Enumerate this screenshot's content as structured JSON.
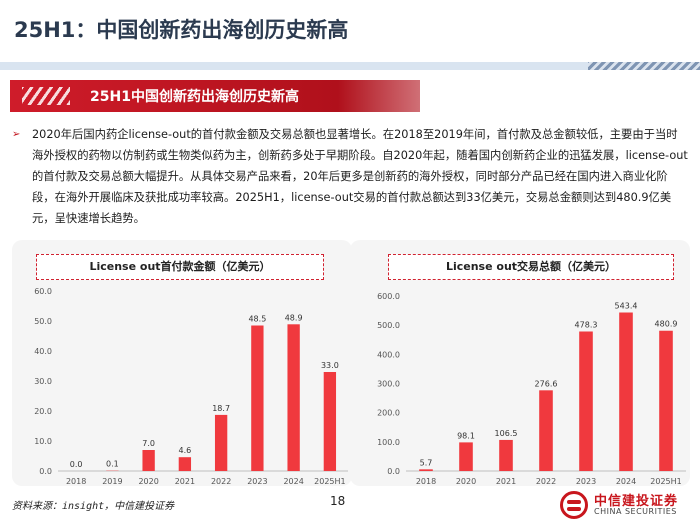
{
  "header": {
    "title": "25H1：中国创新药出海创历史新高"
  },
  "section": {
    "banner": "25H1中国创新药出海创历史新高"
  },
  "body": {
    "arrow": "➢",
    "text": "2020年后国内药企license-out的首付款金额及交易总额也显著增长。在2018至2019年间，首付款及总金额较低，主要由于当时海外授权的药物以仿制药或生物类似药为主，创新药多处于早期阶段。自2020年起，随着国内创新药企业的迅猛发展，license-out的首付款及交易总额大幅提升。从具体交易产品来看，20年后更多是创新药的海外授权，同时部分产品已经在国内进入商业化阶段，在海外开展临床及获批成功率较高。2025H1，license-out交易的首付款总额达到33亿美元，交易总金额则达到480.9亿美元，呈快速增长趋势。"
  },
  "chart_data": [
    {
      "type": "bar",
      "title": "License out首付款金额（亿美元）",
      "categories": [
        "2018",
        "2019",
        "2020",
        "2021",
        "2022",
        "2023",
        "2024",
        "2025H1"
      ],
      "values": [
        0.0,
        0.1,
        7.0,
        4.6,
        18.7,
        48.5,
        48.9,
        33.0
      ],
      "value_labels": [
        "0.0",
        "0.1",
        "7.0",
        "4.6",
        "18.7",
        "48.5",
        "48.9",
        "33.0"
      ],
      "ylim": [
        0,
        60
      ],
      "yticks": [
        "0.0",
        "10.0",
        "20.0",
        "30.0",
        "40.0",
        "50.0",
        "60.0"
      ],
      "grid": false,
      "bar_color": "#f0393e"
    },
    {
      "type": "bar",
      "title": "License out交易总额（亿美元）",
      "categories": [
        "2018",
        "2020",
        "2021",
        "2022",
        "2023",
        "2024",
        "2025H1"
      ],
      "values": [
        5.7,
        98.1,
        106.5,
        276.6,
        478.3,
        543.4,
        480.9
      ],
      "value_labels": [
        "5.7",
        "98.1",
        "106.5",
        "276.6",
        "478.3",
        "543.4",
        "480.9"
      ],
      "ylim": [
        0,
        600
      ],
      "yticks": [
        "0.0",
        "100.0",
        "200.0",
        "300.0",
        "400.0",
        "500.0",
        "600.0"
      ],
      "grid": false,
      "bar_color": "#f0393e"
    }
  ],
  "footer": {
    "source": "资料来源：insight，中信建投证券",
    "page": "18",
    "logo_cn": "中信建投证券",
    "logo_en": "CHINA SECURITIES"
  }
}
